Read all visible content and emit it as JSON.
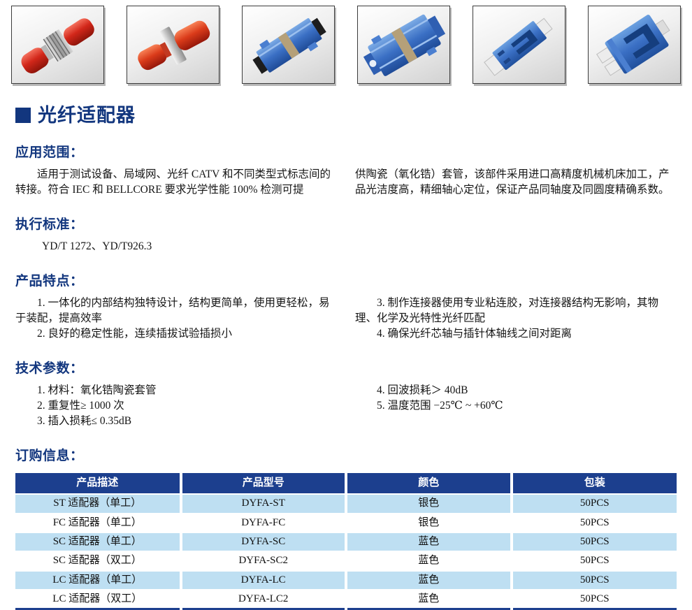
{
  "page_title": "光纤适配器",
  "colors": {
    "accent_navy": "#12367e",
    "table_header_bg": "#1c3f8e",
    "table_alt_row_bg": "#bedff2",
    "adapter_red": "#d2271a",
    "adapter_blue": "#3a6fc4",
    "adapter_white": "#ececec"
  },
  "product_images": [
    "st-adapter",
    "fc-adapter",
    "sc-simplex-adapter",
    "sc-duplex-adapter",
    "lc-simplex-adapter",
    "lc-duplex-adapter"
  ],
  "application": {
    "heading": "应用范围：",
    "left_text": "适用于测试设备、局域网、光纤 CATV 和不同类型式标志间的转接。符合 IEC 和 BELLCORE 要求光学性能 100% 检测可提",
    "right_text": "供陶瓷（氧化锆）套管，该部件采用进口高精度机械机床加工，产品光洁度高，精细轴心定位，保证产品同轴度及同圆度精确系数。"
  },
  "standard": {
    "heading": "执行标准：",
    "content": "YD/T 1272、YD/T926.3"
  },
  "features": {
    "heading": "产品特点：",
    "left_items": [
      "1. 一体化的内部结构独特设计，结构更简单，使用更轻松，易于装配，提高效率",
      "2. 良好的稳定性能，连续插拔试验插损小"
    ],
    "right_items": [
      "3. 制作连接器使用专业粘连胶，对连接器结构无影响，其物理、化学及光特性光纤匹配",
      "4. 确保光纤芯轴与插针体轴线之间对距离"
    ]
  },
  "parameters": {
    "heading": "技术参数：",
    "left_items": [
      "1. 材料：氧化锆陶瓷套管",
      "2. 重复性≥ 1000 次",
      "3. 插入损耗≤ 0.35dB"
    ],
    "right_items": [
      "4. 回波损耗＞ 40dB",
      "5. 温度范围 −25℃ ~ +60℃"
    ]
  },
  "ordering": {
    "heading": "订购信息：",
    "table": {
      "headers": [
        "产品描述",
        "产品型号",
        "颜色",
        "包装"
      ],
      "rows": [
        [
          "ST 适配器（单工）",
          "DYFA-ST",
          "银色",
          "50PCS"
        ],
        [
          "FC 适配器（单工）",
          "DYFA-FC",
          "银色",
          "50PCS"
        ],
        [
          "SC 适配器（单工）",
          "DYFA-SC",
          "蓝色",
          "50PCS"
        ],
        [
          "SC 适配器（双工）",
          "DYFA-SC2",
          "蓝色",
          "50PCS"
        ],
        [
          "LC 适配器（单工）",
          "DYFA-LC",
          "蓝色",
          "50PCS"
        ],
        [
          "LC 适配器（双工）",
          "DYFA-LC2",
          "蓝色",
          "50PCS"
        ]
      ]
    }
  }
}
